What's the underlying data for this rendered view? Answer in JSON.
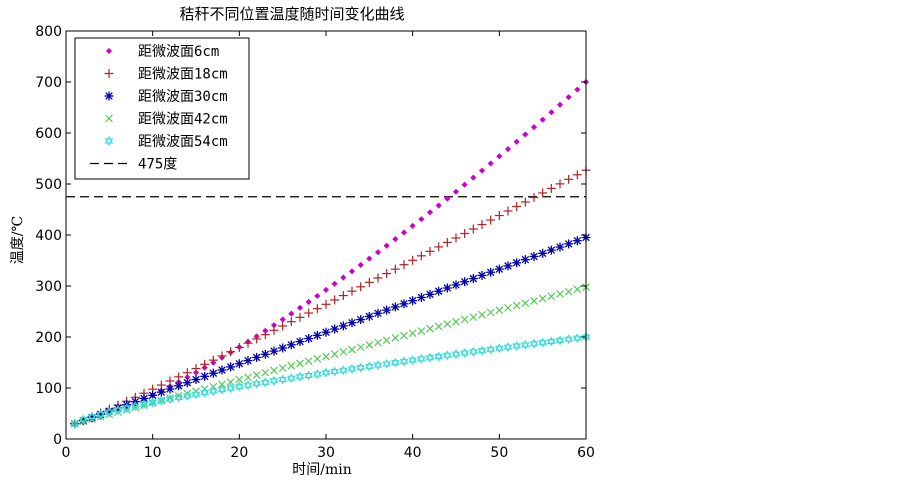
{
  "chart_data": {
    "type": "scatter",
    "title": "秸秆不同位置温度随时间变化曲线",
    "xlabel": "时间/min",
    "ylabel": "温度/℃",
    "xlim": [
      0,
      60
    ],
    "ylim": [
      0,
      800
    ],
    "xticks": [
      0,
      10,
      20,
      30,
      40,
      50,
      60
    ],
    "yticks": [
      0,
      100,
      200,
      300,
      400,
      500,
      600,
      700,
      800
    ],
    "grid": false,
    "legend_position": "top-left",
    "x_start": 1,
    "x_end": 60,
    "x_step": 1,
    "series": [
      {
        "name": "距微波面6cm",
        "marker": "diamond",
        "color": "#cc00cc",
        "y_start": 30,
        "y_end": 700,
        "curve_exponent": 1.32
      },
      {
        "name": "距微波面18cm",
        "marker": "plus",
        "color": "#b22222",
        "y_start": 30,
        "y_end": 527,
        "curve_exponent": 1.06
      },
      {
        "name": "距微波面30cm",
        "marker": "star",
        "color": "#0000aa",
        "y_start": 30,
        "y_end": 395,
        "curve_exponent": 1.0
      },
      {
        "name": "距微波面42cm",
        "marker": "x",
        "color": "#55cc55",
        "y_start": 30,
        "y_end": 298,
        "curve_exponent": 1.0
      },
      {
        "name": "距微波面54cm",
        "marker": "hexstar",
        "color": "#33dddd",
        "y_start": 30,
        "y_end": 200,
        "curve_exponent": 0.75
      }
    ],
    "reference_line": {
      "name": "475度",
      "y": 475,
      "color": "#000000",
      "style": "dashed"
    }
  }
}
